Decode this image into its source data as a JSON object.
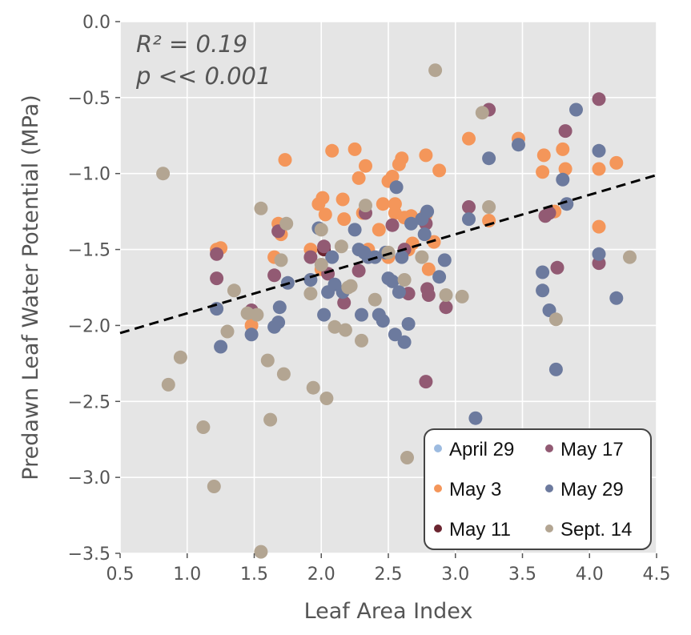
{
  "chart_data": {
    "type": "scatter",
    "xlabel": "Leaf Area Index",
    "ylabel": "Predawn Leaf Water Potential (MPa)",
    "xlim": [
      0.5,
      4.5
    ],
    "ylim": [
      -3.5,
      0.0
    ],
    "xticks": [
      "0.5",
      "1.0",
      "1.5",
      "2.0",
      "2.5",
      "3.0",
      "3.5",
      "4.0",
      "4.5"
    ],
    "yticks": [
      "0.0",
      "−0.5",
      "−1.0",
      "−1.5",
      "−2.0",
      "−2.5",
      "−3.0",
      "−3.5"
    ],
    "grid": true,
    "legend_position": "bottom-right",
    "annotations": [
      "R² = 0.19",
      "p << 0.001"
    ],
    "trendline": {
      "x": [
        0.5,
        4.5
      ],
      "y": [
        -2.05,
        -1.01
      ],
      "style": "dashed",
      "color": "#000000"
    },
    "series": [
      {
        "name": "April 29",
        "color": "#9dbbe0",
        "points": []
      },
      {
        "name": "May 3",
        "color": "#f4965a",
        "points": [
          [
            1.22,
            -1.5
          ],
          [
            1.25,
            -1.49
          ],
          [
            1.48,
            -2.0
          ],
          [
            1.65,
            -1.55
          ],
          [
            1.68,
            -1.33
          ],
          [
            1.7,
            -1.4
          ],
          [
            1.73,
            -0.91
          ],
          [
            1.92,
            -1.5
          ],
          [
            1.98,
            -1.2
          ],
          [
            2.01,
            -1.16
          ],
          [
            2.03,
            -1.27
          ],
          [
            2.08,
            -0.85
          ],
          [
            2.16,
            -1.17
          ],
          [
            2.17,
            -1.3
          ],
          [
            2.25,
            -0.84
          ],
          [
            2.28,
            -1.03
          ],
          [
            2.31,
            -1.26
          ],
          [
            2.33,
            -0.95
          ],
          [
            2.35,
            -1.5
          ],
          [
            2.43,
            -1.37
          ],
          [
            2.46,
            -1.2
          ],
          [
            2.5,
            -1.05
          ],
          [
            2.53,
            -1.02
          ],
          [
            2.55,
            -1.2
          ],
          [
            2.55,
            -1.26
          ],
          [
            2.58,
            -0.94
          ],
          [
            2.6,
            -0.9
          ],
          [
            2.62,
            -1.29
          ],
          [
            2.65,
            -1.5
          ],
          [
            2.67,
            -1.28
          ],
          [
            2.78,
            -1.27
          ],
          [
            2.78,
            -0.88
          ],
          [
            2.88,
            -0.98
          ],
          [
            2.8,
            -1.63
          ],
          [
            2.84,
            -1.45
          ],
          [
            3.1,
            -0.77
          ],
          [
            3.25,
            -1.31
          ],
          [
            3.47,
            -0.77
          ],
          [
            3.65,
            -0.99
          ],
          [
            3.66,
            -0.88
          ],
          [
            3.74,
            -1.25
          ],
          [
            3.8,
            -0.84
          ],
          [
            3.82,
            -0.97
          ],
          [
            4.07,
            -0.97
          ],
          [
            4.07,
            -1.35
          ],
          [
            4.2,
            -0.93
          ],
          [
            2.0,
            -1.63
          ],
          [
            2.5,
            -1.55
          ],
          [
            2.68,
            -1.46
          ]
        ]
      },
      {
        "name": "May 11",
        "color": "#6b2530",
        "points": [
          [
            2.02,
            -1.5
          ]
        ]
      },
      {
        "name": "May 17",
        "color": "#925a73",
        "points": [
          [
            1.22,
            -1.53
          ],
          [
            1.22,
            -1.69
          ],
          [
            1.48,
            -1.9
          ],
          [
            1.65,
            -1.67
          ],
          [
            1.68,
            -1.38
          ],
          [
            1.92,
            -1.55
          ],
          [
            2.02,
            -1.48
          ],
          [
            2.05,
            -1.66
          ],
          [
            2.17,
            -1.85
          ],
          [
            2.28,
            -1.64
          ],
          [
            2.33,
            -1.26
          ],
          [
            2.53,
            -1.34
          ],
          [
            2.62,
            -1.5
          ],
          [
            2.65,
            -1.79
          ],
          [
            2.78,
            -1.33
          ],
          [
            2.79,
            -1.76
          ],
          [
            2.8,
            -1.8
          ],
          [
            2.78,
            -2.37
          ],
          [
            2.93,
            -1.88
          ],
          [
            3.25,
            -0.58
          ],
          [
            3.1,
            -1.22
          ],
          [
            3.67,
            -1.28
          ],
          [
            3.7,
            -1.26
          ],
          [
            3.76,
            -1.62
          ],
          [
            3.82,
            -0.72
          ],
          [
            4.07,
            -0.51
          ],
          [
            4.07,
            -1.59
          ]
        ]
      },
      {
        "name": "May 29",
        "color": "#6c7a9e",
        "points": [
          [
            1.22,
            -1.89
          ],
          [
            1.25,
            -2.14
          ],
          [
            1.48,
            -2.06
          ],
          [
            1.65,
            -2.01
          ],
          [
            1.68,
            -1.98
          ],
          [
            1.69,
            -1.88
          ],
          [
            1.75,
            -1.72
          ],
          [
            1.92,
            -1.7
          ],
          [
            1.98,
            -1.36
          ],
          [
            2.02,
            -1.93
          ],
          [
            2.05,
            -1.78
          ],
          [
            2.08,
            -1.55
          ],
          [
            2.1,
            -1.73
          ],
          [
            2.16,
            -1.78
          ],
          [
            2.25,
            -1.37
          ],
          [
            2.28,
            -1.5
          ],
          [
            2.3,
            -1.93
          ],
          [
            2.32,
            -1.52
          ],
          [
            2.35,
            -1.55
          ],
          [
            2.4,
            -1.55
          ],
          [
            2.43,
            -1.93
          ],
          [
            2.46,
            -1.97
          ],
          [
            2.48,
            -1.52
          ],
          [
            2.5,
            -1.69
          ],
          [
            2.53,
            -1.71
          ],
          [
            2.55,
            -2.06
          ],
          [
            2.56,
            -1.09
          ],
          [
            2.58,
            -1.78
          ],
          [
            2.6,
            -1.55
          ],
          [
            2.62,
            -2.11
          ],
          [
            2.65,
            -1.99
          ],
          [
            2.67,
            -1.33
          ],
          [
            2.75,
            -1.3
          ],
          [
            2.77,
            -1.4
          ],
          [
            2.79,
            -1.25
          ],
          [
            2.88,
            -1.68
          ],
          [
            2.92,
            -1.57
          ],
          [
            3.1,
            -1.3
          ],
          [
            3.15,
            -2.61
          ],
          [
            3.25,
            -0.9
          ],
          [
            3.47,
            -0.81
          ],
          [
            3.65,
            -1.65
          ],
          [
            3.65,
            -1.77
          ],
          [
            3.7,
            -1.9
          ],
          [
            3.75,
            -2.29
          ],
          [
            3.8,
            -1.04
          ],
          [
            3.83,
            -1.2
          ],
          [
            3.9,
            -0.58
          ],
          [
            4.07,
            -0.85
          ],
          [
            4.07,
            -1.53
          ],
          [
            4.2,
            -1.82
          ]
        ]
      },
      {
        "name": "Sept. 14",
        "color": "#b3a592",
        "points": [
          [
            0.82,
            -1.0
          ],
          [
            0.86,
            -2.39
          ],
          [
            0.95,
            -2.21
          ],
          [
            1.12,
            -2.67
          ],
          [
            1.2,
            -3.06
          ],
          [
            1.3,
            -2.04
          ],
          [
            1.35,
            -1.77
          ],
          [
            1.45,
            -1.92
          ],
          [
            1.52,
            -1.93
          ],
          [
            1.55,
            -1.23
          ],
          [
            1.55,
            -3.49
          ],
          [
            1.6,
            -2.23
          ],
          [
            1.62,
            -2.62
          ],
          [
            1.7,
            -1.57
          ],
          [
            1.72,
            -2.32
          ],
          [
            1.74,
            -1.33
          ],
          [
            1.92,
            -1.79
          ],
          [
            1.94,
            -2.41
          ],
          [
            2.0,
            -1.6
          ],
          [
            2.0,
            -1.37
          ],
          [
            2.04,
            -2.48
          ],
          [
            2.1,
            -2.01
          ],
          [
            2.15,
            -1.48
          ],
          [
            2.18,
            -2.03
          ],
          [
            2.2,
            -1.75
          ],
          [
            2.22,
            -1.74
          ],
          [
            2.3,
            -2.1
          ],
          [
            2.33,
            -1.21
          ],
          [
            2.4,
            -1.83
          ],
          [
            2.5,
            -1.52
          ],
          [
            2.62,
            -1.7
          ],
          [
            2.64,
            -2.87
          ],
          [
            2.75,
            -1.55
          ],
          [
            2.85,
            -0.32
          ],
          [
            2.93,
            -1.8
          ],
          [
            3.05,
            -1.81
          ],
          [
            3.2,
            -0.6
          ],
          [
            3.25,
            -1.22
          ],
          [
            3.75,
            -1.96
          ],
          [
            4.3,
            -1.55
          ]
        ]
      }
    ]
  }
}
